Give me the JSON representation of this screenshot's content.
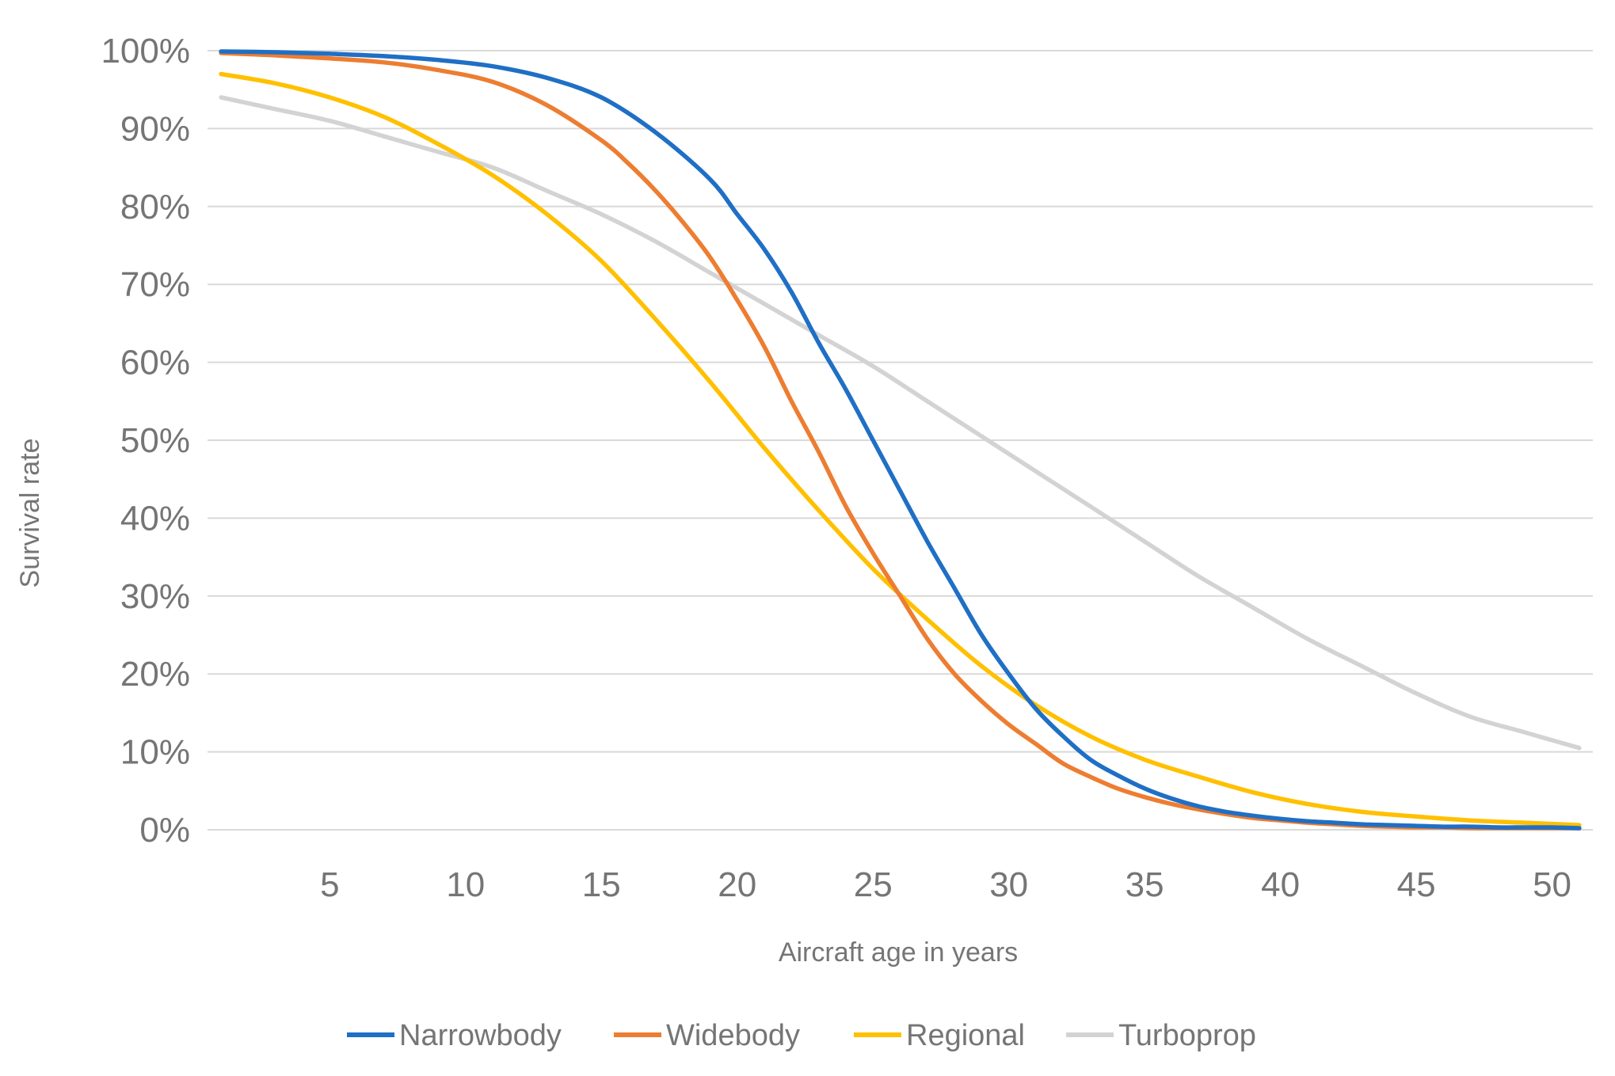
{
  "chart_data": {
    "type": "line",
    "title": "",
    "xlabel": "Aircraft age in years",
    "ylabel": "Survival rate",
    "xlim": [
      0.5,
      51.5
    ],
    "ylim": [
      0,
      100
    ],
    "x_ticks": [
      5,
      10,
      15,
      20,
      25,
      30,
      35,
      40,
      45,
      50
    ],
    "x_tick_labels": [
      "5",
      "10",
      "15",
      "20",
      "25",
      "30",
      "35",
      "40",
      "45",
      "50"
    ],
    "y_ticks": [
      0,
      10,
      20,
      30,
      40,
      50,
      60,
      70,
      80,
      90,
      100
    ],
    "y_tick_labels": [
      "0%",
      "10%",
      "20%",
      "30%",
      "40%",
      "50%",
      "60%",
      "70%",
      "80%",
      "90%",
      "100%"
    ],
    "grid": true,
    "legend_position": "bottom",
    "series": [
      {
        "name": "Narrowbody",
        "color": "#1f6fc5",
        "x": [
          1,
          3,
          5,
          7,
          9,
          11,
          13,
          15,
          17,
          19,
          20,
          21,
          22,
          23,
          24,
          25,
          26,
          27,
          28,
          29,
          30,
          31,
          32,
          33,
          34,
          35,
          36,
          37,
          38,
          39,
          40,
          41,
          42,
          43,
          44,
          45,
          46,
          47,
          48,
          49,
          50,
          51
        ],
        "values": [
          99.9,
          99.8,
          99.6,
          99.3,
          98.8,
          98.0,
          96.5,
          94.0,
          89.5,
          83.5,
          79.0,
          74.5,
          69.0,
          62.5,
          56.5,
          50.0,
          43.5,
          37.0,
          31.0,
          25.0,
          20.0,
          15.5,
          12.0,
          9.0,
          7.0,
          5.3,
          4.0,
          3.0,
          2.3,
          1.8,
          1.4,
          1.1,
          0.9,
          0.7,
          0.6,
          0.5,
          0.4,
          0.4,
          0.3,
          0.3,
          0.3,
          0.2
        ]
      },
      {
        "name": "Widebody",
        "color": "#ed7d31",
        "x": [
          1,
          3,
          5,
          7,
          9,
          11,
          13,
          15,
          16,
          17,
          18,
          19,
          20,
          21,
          22,
          23,
          24,
          25,
          26,
          27,
          28,
          29,
          30,
          31,
          32,
          33,
          34,
          35,
          36,
          37,
          38,
          39,
          40,
          41,
          42,
          43,
          44,
          45,
          46,
          47,
          48,
          49,
          50,
          51
        ],
        "values": [
          99.7,
          99.4,
          99.0,
          98.5,
          97.5,
          96.0,
          93.0,
          88.5,
          85.5,
          82.0,
          78.0,
          73.5,
          68.0,
          62.0,
          55.0,
          48.5,
          41.5,
          35.5,
          30.0,
          24.5,
          20.0,
          16.5,
          13.5,
          11.0,
          8.5,
          6.8,
          5.3,
          4.2,
          3.3,
          2.6,
          2.0,
          1.5,
          1.2,
          0.9,
          0.7,
          0.5,
          0.4,
          0.3,
          0.3,
          0.2,
          0.2,
          0.2,
          0.2,
          0.2
        ]
      },
      {
        "name": "Regional",
        "color": "#ffc000",
        "x": [
          1,
          3,
          5,
          7,
          9,
          11,
          13,
          15,
          17,
          19,
          21,
          23,
          25,
          27,
          29,
          31,
          33,
          35,
          37,
          39,
          41,
          43,
          45,
          47,
          49,
          51
        ],
        "values": [
          97.0,
          95.8,
          94.0,
          91.5,
          88.0,
          84.0,
          79.0,
          73.0,
          65.5,
          57.5,
          49.0,
          41.0,
          33.5,
          27.0,
          21.0,
          16.0,
          12.0,
          9.0,
          6.8,
          4.8,
          3.3,
          2.3,
          1.7,
          1.2,
          0.9,
          0.6
        ]
      },
      {
        "name": "Turboprop",
        "color": "#d3d3d3",
        "x": [
          1,
          3,
          5,
          7,
          9,
          11,
          13,
          15,
          17,
          19,
          21,
          23,
          25,
          27,
          29,
          31,
          33,
          35,
          37,
          39,
          41,
          43,
          45,
          47,
          49,
          51
        ],
        "values": [
          94.0,
          92.5,
          91.0,
          89.0,
          87.0,
          85.0,
          82.0,
          79.0,
          75.5,
          71.5,
          67.5,
          63.5,
          59.5,
          55.0,
          50.5,
          46.0,
          41.5,
          37.0,
          32.5,
          28.5,
          24.5,
          21.0,
          17.5,
          14.5,
          12.5,
          10.5
        ]
      }
    ]
  }
}
